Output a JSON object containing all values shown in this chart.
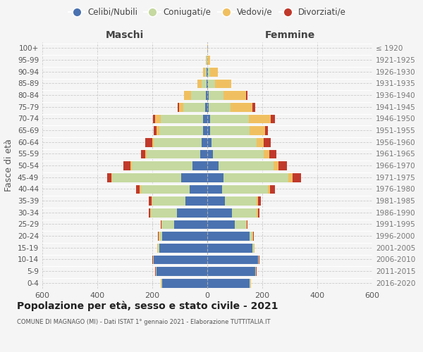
{
  "age_groups": [
    "0-4",
    "5-9",
    "10-14",
    "15-19",
    "20-24",
    "25-29",
    "30-34",
    "35-39",
    "40-44",
    "45-49",
    "50-54",
    "55-59",
    "60-64",
    "65-69",
    "70-74",
    "75-79",
    "80-84",
    "85-89",
    "90-94",
    "95-99",
    "100+"
  ],
  "birth_years": [
    "2016-2020",
    "2011-2015",
    "2006-2010",
    "2001-2005",
    "1996-2000",
    "1991-1995",
    "1986-1990",
    "1981-1985",
    "1976-1980",
    "1971-1975",
    "1966-1970",
    "1961-1965",
    "1956-1960",
    "1951-1955",
    "1946-1950",
    "1941-1945",
    "1936-1940",
    "1931-1935",
    "1926-1930",
    "1921-1925",
    "≤ 1920"
  ],
  "male": {
    "single": [
      165,
      185,
      195,
      175,
      165,
      120,
      110,
      80,
      65,
      95,
      55,
      25,
      20,
      15,
      15,
      8,
      5,
      3,
      2,
      1,
      0
    ],
    "married": [
      2,
      2,
      2,
      5,
      10,
      45,
      95,
      120,
      175,
      250,
      220,
      195,
      175,
      160,
      155,
      80,
      55,
      18,
      6,
      2,
      0
    ],
    "widowed": [
      1,
      1,
      1,
      1,
      2,
      2,
      2,
      2,
      5,
      5,
      5,
      5,
      5,
      10,
      20,
      15,
      25,
      15,
      8,
      2,
      0
    ],
    "divorced": [
      1,
      1,
      1,
      1,
      2,
      2,
      5,
      10,
      15,
      15,
      25,
      15,
      25,
      10,
      8,
      5,
      0,
      0,
      0,
      0,
      0
    ]
  },
  "female": {
    "single": [
      155,
      175,
      185,
      165,
      155,
      100,
      90,
      65,
      55,
      60,
      40,
      20,
      15,
      10,
      10,
      5,
      5,
      3,
      2,
      1,
      0
    ],
    "married": [
      2,
      2,
      2,
      5,
      10,
      40,
      90,
      115,
      165,
      235,
      200,
      185,
      165,
      145,
      140,
      80,
      55,
      25,
      8,
      2,
      1
    ],
    "widowed": [
      1,
      1,
      1,
      1,
      2,
      3,
      4,
      5,
      8,
      15,
      20,
      20,
      25,
      55,
      80,
      80,
      80,
      60,
      28,
      8,
      2
    ],
    "divorced": [
      1,
      1,
      1,
      1,
      2,
      3,
      5,
      10,
      18,
      30,
      30,
      25,
      25,
      10,
      15,
      10,
      5,
      0,
      0,
      0,
      0
    ]
  },
  "colors": {
    "single": "#4a72b0",
    "married": "#c5d9a0",
    "widowed": "#f0c060",
    "divorced": "#c0392b"
  },
  "legend_labels": [
    "Celibi/Nubili",
    "Coniugati/e",
    "Vedovi/e",
    "Divorziati/e"
  ],
  "title": "Popolazione per età, sesso e stato civile - 2021",
  "subtitle": "COMUNE DI MAGNAGO (MI) - Dati ISTAT 1° gennaio 2021 - Elaborazione TUTTITALIA.IT",
  "xlabel_left": "Maschi",
  "xlabel_right": "Femmine",
  "ylabel_left": "Fasce di età",
  "xlim": 600,
  "background_color": "#f5f5f5",
  "grid_color": "#cccccc"
}
